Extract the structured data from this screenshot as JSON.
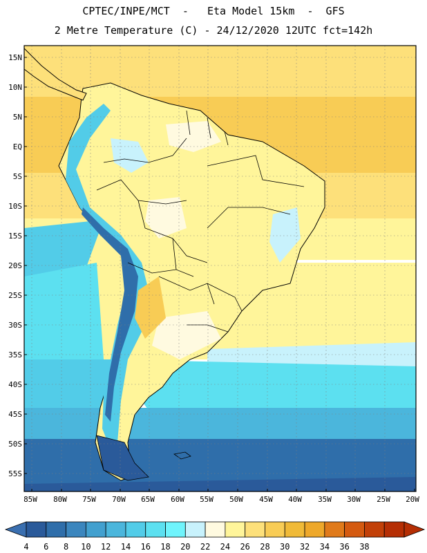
{
  "header": {
    "line1": "CPTEC/INPE/MCT  -   Eta Model 15km  -  GFS",
    "line2": "2 Metre Temperature (C) - 24/12/2020 12UTC fct=142h"
  },
  "map": {
    "lat_labels": [
      "15N",
      "10N",
      "5N",
      "EQ",
      "5S",
      "10S",
      "15S",
      "20S",
      "25S",
      "30S",
      "35S",
      "40S",
      "45S",
      "50S",
      "55S"
    ],
    "lon_labels": [
      "85W",
      "80W",
      "75W",
      "70W",
      "65W",
      "60W",
      "55W",
      "50W",
      "45W",
      "40W",
      "35W",
      "30W",
      "25W",
      "20W"
    ]
  },
  "colorbar": {
    "ticks": [
      "4",
      "6",
      "8",
      "10",
      "12",
      "14",
      "16",
      "18",
      "20",
      "22",
      "24",
      "26",
      "28",
      "30",
      "32",
      "34",
      "36",
      "38"
    ],
    "colors": [
      "#2a5a9a",
      "#2f6eaa",
      "#3b86be",
      "#42a0cf",
      "#4bb6dc",
      "#52cce8",
      "#5ce0f0",
      "#6ff4fc",
      "#c8f2fc",
      "#fffae0",
      "#fff59a",
      "#fde07a",
      "#f8cc55",
      "#f0ba38",
      "#eea82a",
      "#e07a1a",
      "#d45a10",
      "#c24008",
      "#b52e04"
    ],
    "under_color": "#3a6fb0",
    "over_color": "#b52e04"
  }
}
